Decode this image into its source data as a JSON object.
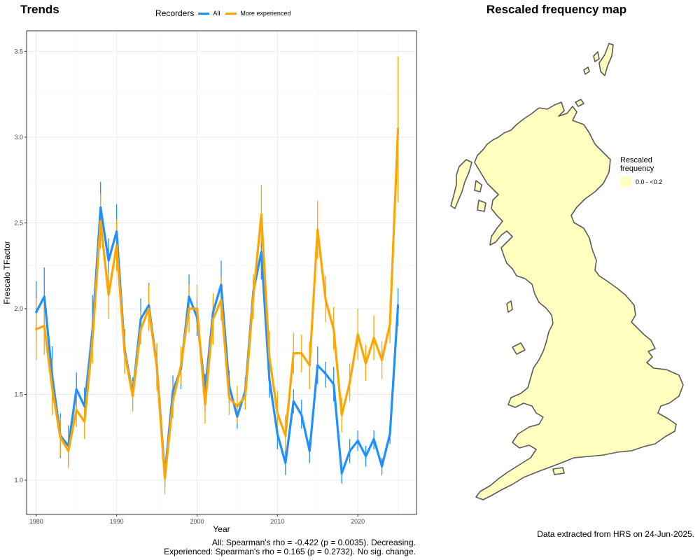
{
  "trends_title": "Trends",
  "map_title": "Rescaled frequency map",
  "legend": {
    "title": "Recorders",
    "items": [
      {
        "label": "All",
        "color": "#1E90FF"
      },
      {
        "label": "More experienced",
        "color": "#FFA500"
      }
    ]
  },
  "stats": {
    "all": "All: Spearman's rho = -0.422 (p = 0.0035). Decreasing.",
    "experienced": "Experienced: Spearman's rho = 0.165 (p = 0.2732). No sig. change."
  },
  "map_legend": {
    "title_line1": "Rescaled",
    "title_line2": "frequency",
    "key_label": "0.0 - <0.2",
    "key_color": "#FFFFC0"
  },
  "extract_note": "Data extracted from HRS on 24-Jun-2025.",
  "chart_data": {
    "type": "line",
    "xlabel": "Year",
    "ylabel": "Frescalo TFactor",
    "xlim": [
      1978.8,
      2027.3
    ],
    "ylim": [
      0.8,
      3.62
    ],
    "xticks": [
      1980,
      1990,
      2000,
      2010,
      2020
    ],
    "yticks": [
      1.0,
      1.5,
      2.0,
      2.5,
      3.0,
      3.5
    ],
    "ytick_labels": [
      "1.0",
      "1.5",
      "2.0",
      "2.5",
      "3.0",
      "3.5"
    ],
    "grid": true,
    "legend_position": "top",
    "x": [
      1980,
      1981,
      1982,
      1983,
      1984,
      1985,
      1986,
      1987,
      1988,
      1989,
      1990,
      1991,
      1992,
      1993,
      1994,
      1995,
      1996,
      1997,
      1998,
      1999,
      2000,
      2001,
      2002,
      2003,
      2004,
      2005,
      2006,
      2007,
      2008,
      2009,
      2010,
      2011,
      2012,
      2013,
      2014,
      2015,
      2016,
      2017,
      2018,
      2019,
      2020,
      2021,
      2022,
      2023,
      2024,
      2025
    ],
    "series": [
      {
        "name": "All",
        "color": "#1E90FF",
        "values": [
          1.98,
          2.07,
          1.6,
          1.26,
          1.2,
          1.53,
          1.43,
          1.88,
          2.59,
          2.28,
          2.45,
          1.76,
          1.5,
          1.94,
          2.02,
          1.67,
          1.03,
          1.52,
          1.65,
          2.07,
          1.95,
          1.52,
          1.98,
          2.14,
          1.55,
          1.37,
          1.52,
          2.1,
          2.33,
          1.59,
          1.27,
          1.1,
          1.46,
          1.38,
          1.17,
          1.67,
          1.62,
          1.56,
          1.04,
          1.17,
          1.23,
          1.14,
          1.24,
          1.08,
          1.27,
          2.02
        ],
        "err_low": [
          1.8,
          1.9,
          1.42,
          1.13,
          1.08,
          1.42,
          1.33,
          1.78,
          2.45,
          2.14,
          2.3,
          1.62,
          1.41,
          1.84,
          1.92,
          1.55,
          0.96,
          1.43,
          1.53,
          1.94,
          1.84,
          1.4,
          1.88,
          1.98,
          1.45,
          1.3,
          1.43,
          2.0,
          2.17,
          1.48,
          1.18,
          1.03,
          1.39,
          1.3,
          1.1,
          1.56,
          1.54,
          1.46,
          0.98,
          1.1,
          1.17,
          1.08,
          1.18,
          1.03,
          1.21,
          1.9
        ],
        "err_high": [
          2.16,
          2.24,
          1.78,
          1.39,
          1.32,
          1.63,
          1.54,
          2.08,
          2.74,
          2.41,
          2.61,
          1.88,
          1.6,
          2.06,
          2.15,
          1.79,
          1.1,
          1.61,
          1.75,
          2.2,
          2.06,
          1.62,
          2.06,
          2.28,
          1.64,
          1.44,
          1.6,
          2.2,
          2.48,
          1.7,
          1.35,
          1.17,
          1.53,
          1.47,
          1.24,
          1.78,
          1.69,
          1.66,
          1.1,
          1.24,
          1.29,
          1.2,
          1.29,
          1.13,
          1.33,
          2.12
        ]
      },
      {
        "name": "More experienced",
        "color": "#FFA500",
        "values": [
          1.88,
          1.9,
          1.53,
          1.25,
          1.17,
          1.41,
          1.34,
          1.82,
          2.51,
          2.08,
          2.37,
          1.74,
          1.49,
          1.88,
          2.0,
          1.66,
          1.01,
          1.46,
          1.67,
          2.0,
          2.0,
          1.44,
          1.94,
          2.05,
          1.48,
          1.43,
          1.49,
          2.07,
          2.55,
          1.72,
          1.39,
          1.26,
          1.74,
          1.74,
          1.67,
          2.46,
          2.05,
          1.88,
          1.38,
          1.57,
          1.85,
          1.68,
          1.83,
          1.7,
          1.91,
          3.05
        ],
        "err_low": [
          1.7,
          1.73,
          1.38,
          1.14,
          1.07,
          1.31,
          1.24,
          1.68,
          2.35,
          1.94,
          2.22,
          1.62,
          1.4,
          1.79,
          1.87,
          1.52,
          0.92,
          1.36,
          1.56,
          1.86,
          1.86,
          1.33,
          1.79,
          1.93,
          1.38,
          1.33,
          1.41,
          1.94,
          2.38,
          1.58,
          1.27,
          1.17,
          1.62,
          1.63,
          1.53,
          2.29,
          1.92,
          1.76,
          1.28,
          1.46,
          1.7,
          1.58,
          1.7,
          1.59,
          1.8,
          2.62
        ],
        "err_high": [
          2.06,
          2.06,
          1.7,
          1.36,
          1.28,
          1.52,
          1.45,
          1.96,
          2.67,
          2.21,
          2.52,
          1.87,
          1.58,
          1.98,
          2.14,
          1.8,
          1.1,
          1.56,
          1.78,
          2.14,
          2.14,
          1.56,
          2.09,
          2.18,
          1.58,
          1.55,
          1.59,
          2.2,
          2.72,
          1.87,
          1.52,
          1.38,
          1.86,
          1.85,
          1.81,
          2.63,
          2.19,
          2.01,
          1.48,
          1.68,
          2.0,
          1.79,
          1.96,
          1.81,
          2.05,
          3.47
        ]
      }
    ]
  }
}
